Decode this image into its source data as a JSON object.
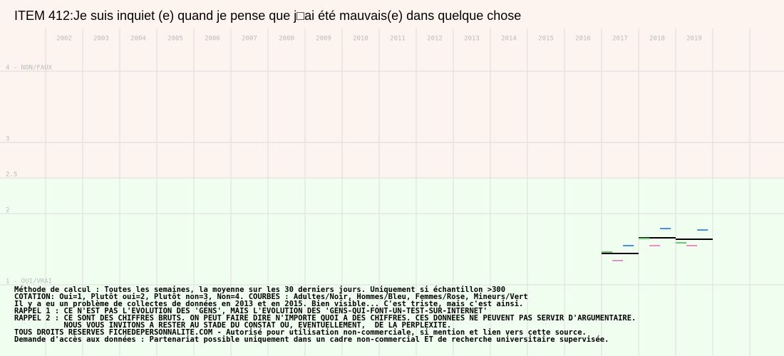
{
  "chart_data": {
    "type": "line-steps",
    "title": "ITEM 412:Je suis inquiet (e) quand je pense que j□ai été mauvais(e) dans quelque chose",
    "categories": [
      "2002",
      "2003",
      "2004",
      "2005",
      "2006",
      "2007",
      "2008",
      "2009",
      "2010",
      "2011",
      "2012",
      "2013",
      "2014",
      "2015",
      "2016",
      "2017",
      "2018",
      "2019"
    ],
    "series": [
      {
        "color": "#000000",
        "values": [
          null,
          null,
          null,
          null,
          null,
          null,
          null,
          null,
          null,
          null,
          null,
          null,
          null,
          null,
          null,
          1.44,
          1.66,
          1.64
        ]
      },
      {
        "color": "#4a90e2",
        "values": [
          null,
          null,
          null,
          null,
          null,
          null,
          null,
          null,
          null,
          null,
          null,
          null,
          null,
          null,
          null,
          1.55,
          1.79,
          1.77
        ]
      },
      {
        "color": "#f08cc8",
        "values": [
          null,
          null,
          null,
          null,
          null,
          null,
          null,
          null,
          null,
          null,
          null,
          null,
          null,
          null,
          null,
          1.34,
          1.55,
          1.55
        ]
      },
      {
        "color": "#66cc66",
        "values": [
          null,
          null,
          null,
          null,
          null,
          null,
          null,
          null,
          null,
          null,
          null,
          null,
          null,
          null,
          null,
          1.46,
          1.65,
          1.59
        ]
      }
    ],
    "ylim": [
      1,
      4
    ],
    "yticks": [
      {
        "value": 4,
        "label": "4 - NON/FAUX"
      },
      3,
      2.5,
      2,
      {
        "value": 1,
        "label": "1 - OUI/VRAI"
      }
    ],
    "grid": true,
    "notes": [
      "Méthode de calcul : Toutes les semaines, la moyenne sur les 30 derniers jours. Uniquement si échantillon >300",
      "COTATION: Oui=1, Plutôt oui=2, Plutôt non=3, Non=4. COURBES : Adultes/Noir, Hommes/Bleu, Femmes/Rose, Mineurs/Vert",
      "Il y a eu un problème de collectes de données en 2013 et en 2015. Bien visible... C'est triste, mais c'est ainsi.",
      "RAPPEL 1 : CE N'EST PAS L'EVOLUTION DES 'GENS', MAIS L'EVOLUTION DES 'GENS-QUI-FONT-UN-TEST-SUR-INTERNET'",
      "RAPPEL 2 : CE SONT DES CHIFFRES BRUTS. ON PEUT FAIRE DIRE N'IMPORTE QUOI A DES CHIFFRES. CES DONNEES NE PEUVENT PAS SERVIR D'ARGUMENTAIRE.",
      "           NOUS VOUS INVITONS A RESTER AU STADE DU CONSTAT OU, EVENTUELLEMENT,  DE LA PERPLEXITE.",
      "TOUS DROITS RESERVES FICHEDEPERSONNALITE.COM - Autorisé pour utilisation non-commerciale, si mention et lien vers cette source.",
      "Demande d'accès aux données : Partenariat possible uniquement dans un cadre non-commercial ET de recherche universitaire supervisée."
    ]
  }
}
